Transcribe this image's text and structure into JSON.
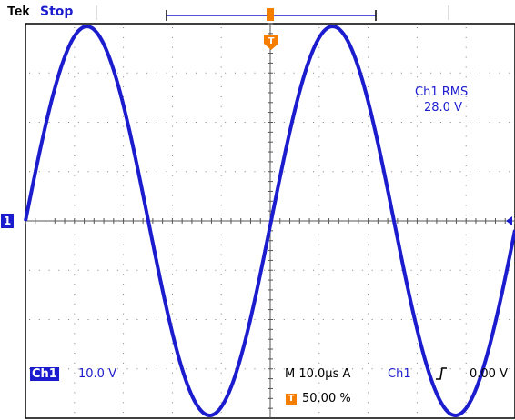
{
  "header": {
    "brand": "Tek",
    "acquisition_state": "Stop"
  },
  "trigger_marker_label": "T",
  "channel_marker_label": "1",
  "measurement": {
    "name": "Ch1 RMS",
    "value": "28.0 V"
  },
  "channel": {
    "badge": "Ch1",
    "scale": "10.0 V"
  },
  "timebase": {
    "label": "M 10.0µs  A",
    "trigger_source": "Ch1",
    "trigger_slope_icon": "rising-edge-icon",
    "trigger_level": "0.00 V",
    "trigger_position": "50.00 %"
  },
  "colors": {
    "trace": "#1c1ccf",
    "trigger": "#f57d00",
    "graticule": "#7f7f7f"
  }
}
